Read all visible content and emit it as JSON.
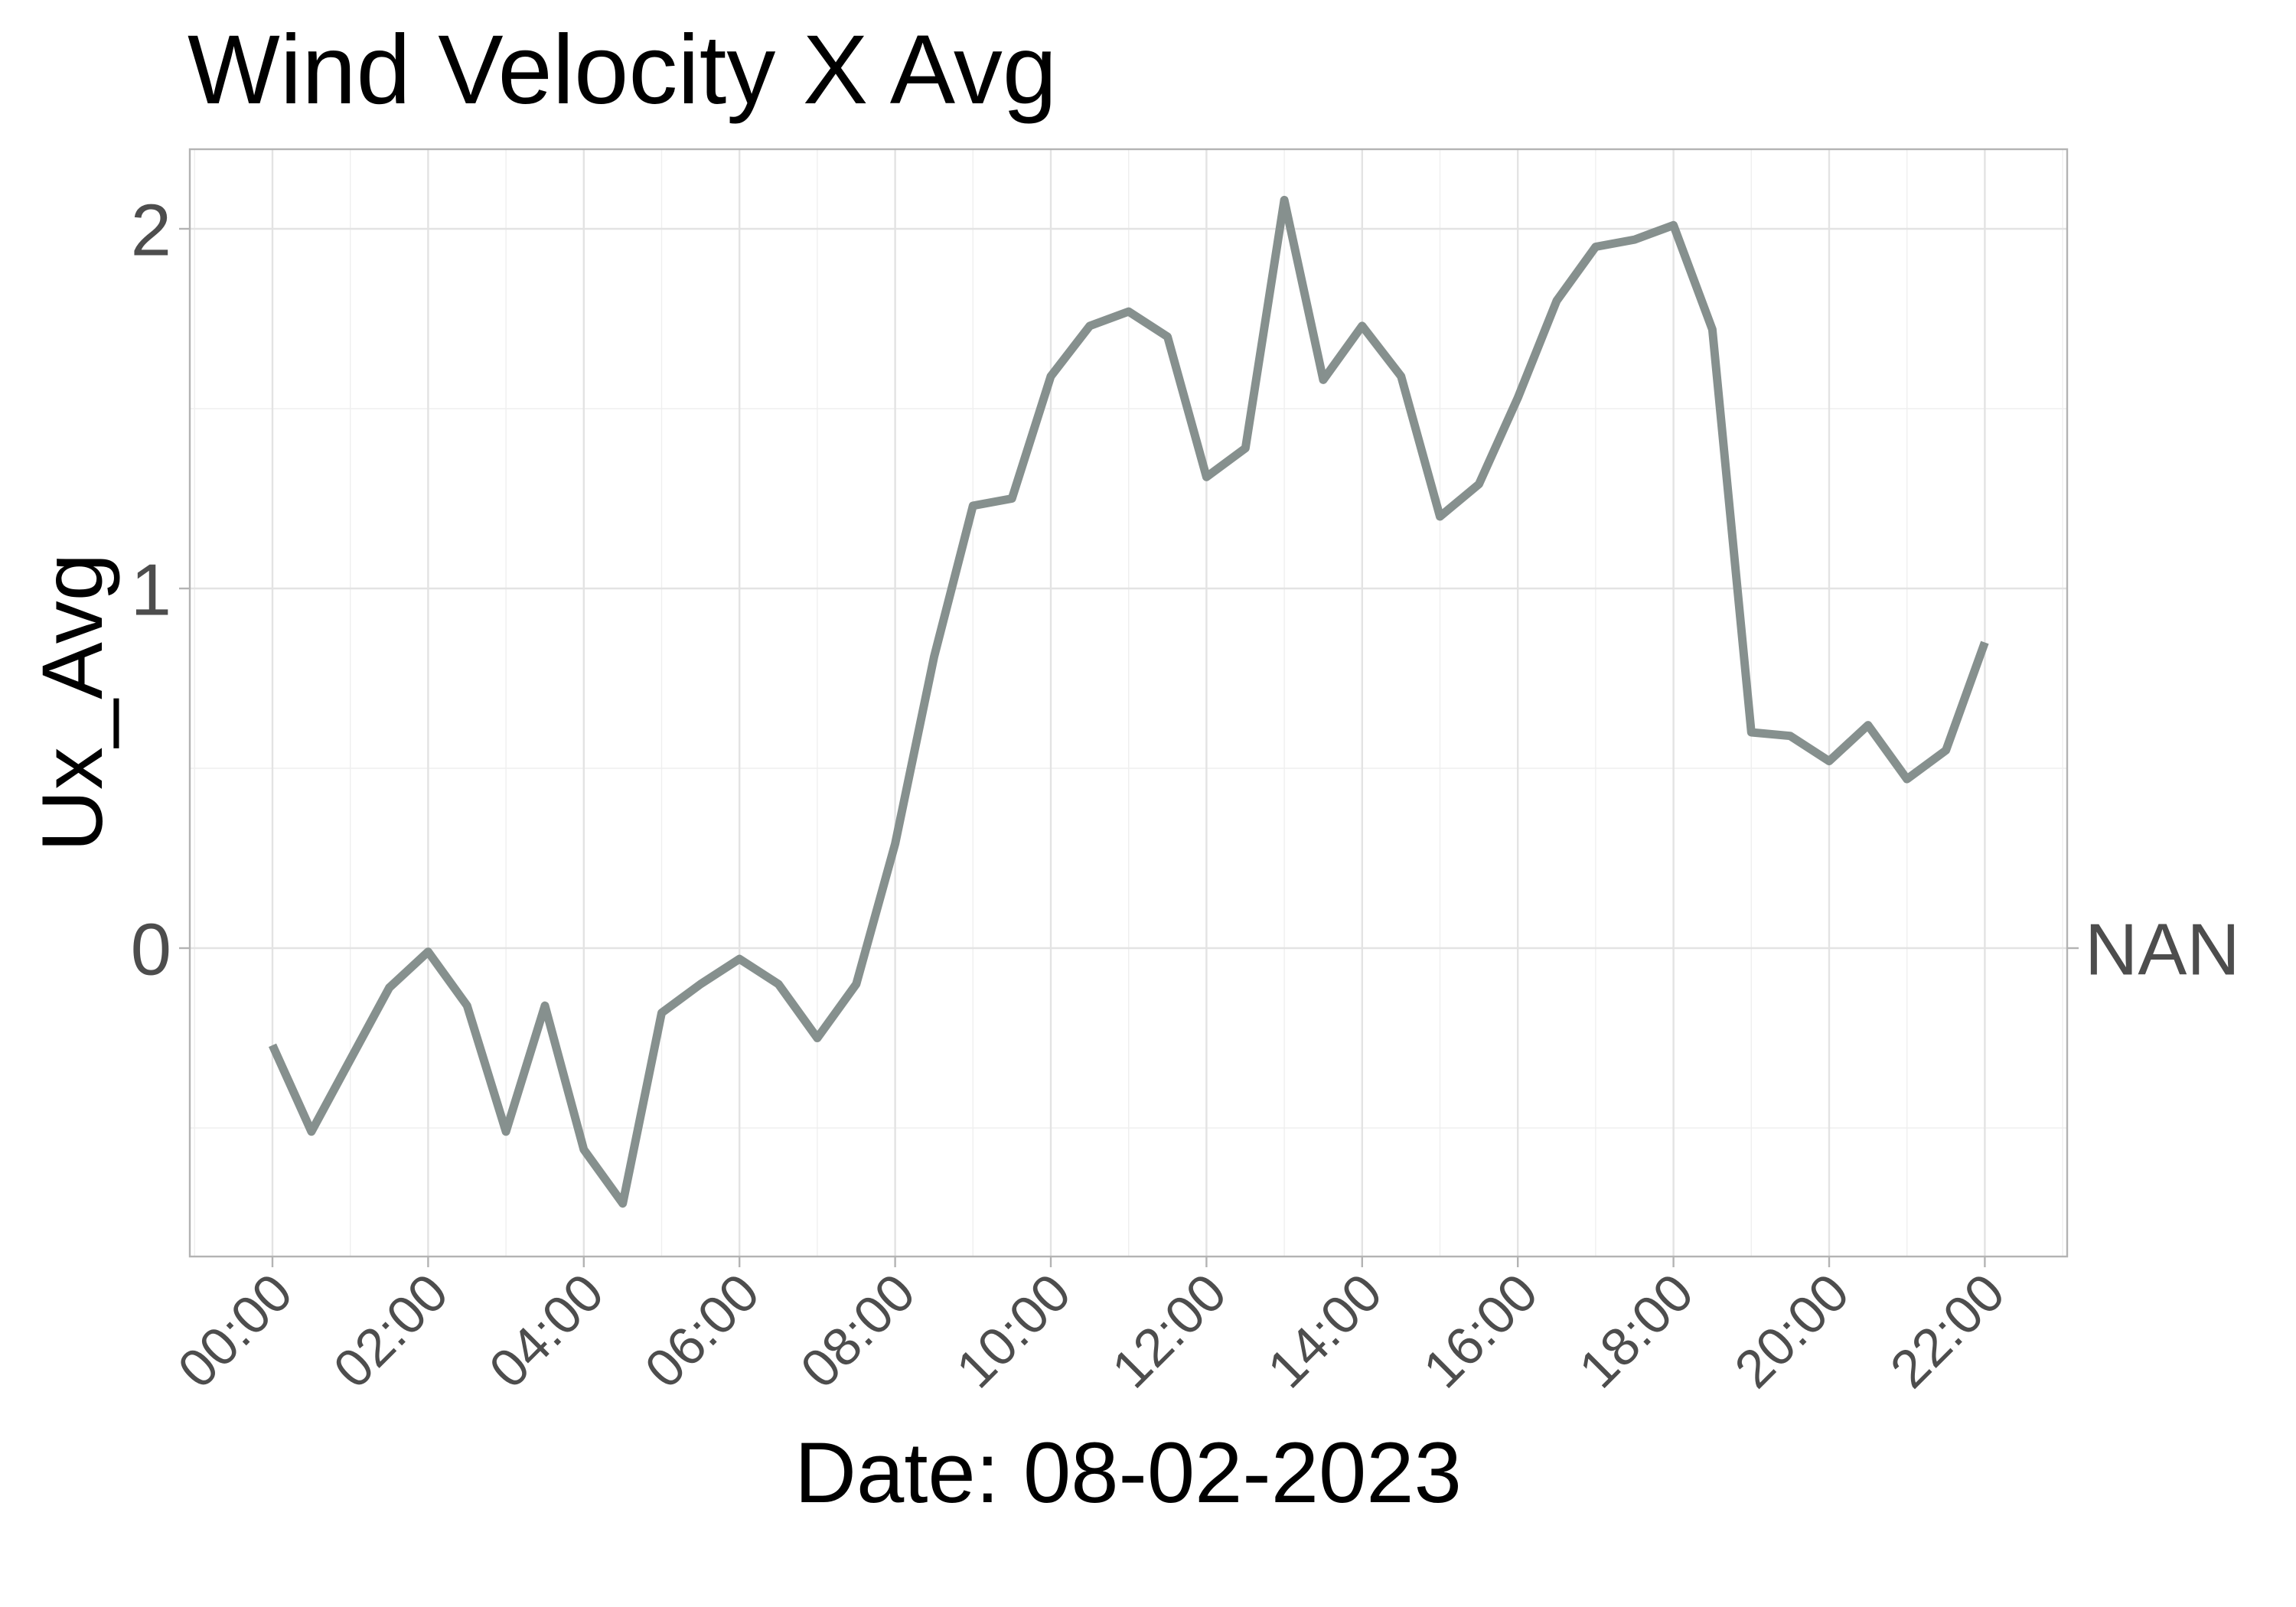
{
  "chart_data": {
    "type": "line",
    "title": "Wind Velocity X Avg",
    "xlabel": "Date: 08-02-2023",
    "ylabel": "Ux_Avg",
    "secondary_axis_label": "NAN",
    "x_ticks": [
      "00:00",
      "02:00",
      "04:00",
      "06:00",
      "08:00",
      "10:00",
      "12:00",
      "14:00",
      "16:00",
      "18:00",
      "20:00",
      "22:00"
    ],
    "y_ticks": [
      "0",
      "1",
      "2"
    ],
    "ylim": [
      -0.85,
      2.22
    ],
    "xlim": [
      "2023-08-02 00:00",
      "2023-08-02 22:00"
    ],
    "x": [
      "00:00",
      "00:30",
      "01:00",
      "01:30",
      "02:00",
      "02:30",
      "03:00",
      "03:30",
      "04:00",
      "04:30",
      "05:00",
      "05:30",
      "06:00",
      "06:30",
      "07:00",
      "07:30",
      "08:00",
      "08:30",
      "09:00",
      "09:30",
      "10:00",
      "10:30",
      "11:00",
      "11:30",
      "12:00",
      "12:30",
      "13:00",
      "13:30",
      "14:00",
      "14:30",
      "15:00",
      "15:30",
      "16:00",
      "16:30",
      "17:00",
      "17:30",
      "18:00",
      "18:30",
      "19:00",
      "19:30",
      "20:00",
      "20:30",
      "21:00",
      "21:30",
      "22:00"
    ],
    "series": [
      {
        "color": "#86908e",
        "values": [
          -0.27,
          -0.51,
          -0.31,
          -0.11,
          -0.01,
          -0.16,
          -0.51,
          -0.16,
          -0.56,
          -0.71,
          -0.18,
          -0.1,
          -0.03,
          -0.1,
          -0.25,
          -0.1,
          0.29,
          0.81,
          1.23,
          1.25,
          1.59,
          1.73,
          1.77,
          1.7,
          1.31,
          1.39,
          2.08,
          1.58,
          1.73,
          1.59,
          1.2,
          1.29,
          1.53,
          1.8,
          1.95,
          1.97,
          2.01,
          1.72,
          0.6,
          0.59,
          0.52,
          0.62,
          0.47,
          0.55,
          0.85
        ]
      }
    ],
    "grid": true,
    "legend": "none"
  }
}
